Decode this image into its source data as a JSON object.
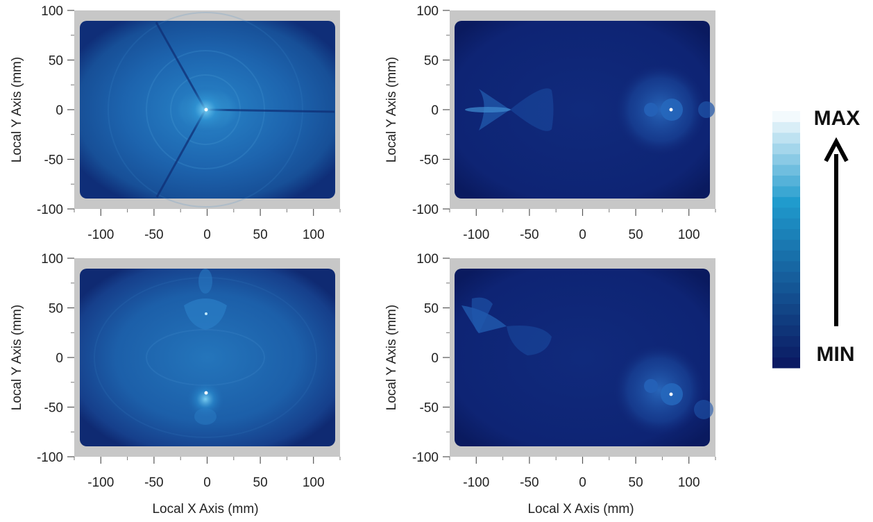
{
  "chart_data": [
    {
      "type": "heatmap",
      "panel": "top-left",
      "xlabel": "",
      "ylabel": "Local Y Axis (mm)",
      "xlim": [
        -125,
        125
      ],
      "ylim": [
        -100,
        100
      ],
      "x_ticks": [
        -100,
        -50,
        0,
        50,
        100
      ],
      "y_ticks": [
        100,
        50,
        0,
        -50,
        -100
      ],
      "x_tick_labels": [
        "-100",
        "-50",
        "0",
        "50",
        "100"
      ],
      "y_tick_labels": [
        "100",
        "50",
        "0",
        "-50",
        "-100"
      ],
      "hotspots": [
        {
          "x": 0,
          "y": 0,
          "intensity": 1.0
        }
      ],
      "features": [
        "central bright spot at origin",
        "concentric rings",
        "three radial dark streaks"
      ]
    },
    {
      "type": "heatmap",
      "panel": "top-right",
      "xlabel": "",
      "ylabel": "Local Y Axis (mm)",
      "xlim": [
        -125,
        125
      ],
      "ylim": [
        -100,
        100
      ],
      "x_ticks": [
        -100,
        -50,
        0,
        50,
        100
      ],
      "y_ticks": [
        100,
        50,
        0,
        -50,
        -100
      ],
      "x_tick_labels": [
        "-100",
        "-50",
        "0",
        "50",
        "100"
      ],
      "y_tick_labels": [
        "100",
        "50",
        "0",
        "-50",
        "-100"
      ],
      "hotspots": [
        {
          "x": 83,
          "y": 0,
          "intensity": 1.0
        }
      ],
      "features": [
        "bright spot near x=83",
        "faint bow-tie shape near x=-100 to -30"
      ]
    },
    {
      "type": "heatmap",
      "panel": "bottom-left",
      "xlabel": "Local X Axis (mm)",
      "ylabel": "Local Y Axis (mm)",
      "xlim": [
        -125,
        125
      ],
      "ylim": [
        -100,
        100
      ],
      "x_ticks": [
        -100,
        -50,
        0,
        50,
        100
      ],
      "y_ticks": [
        100,
        50,
        0,
        -50,
        -100
      ],
      "x_tick_labels": [
        "-100",
        "-50",
        "0",
        "50",
        "100"
      ],
      "y_tick_labels": [
        "100",
        "50",
        "0",
        "-50",
        "-100"
      ],
      "hotspots": [
        {
          "x": 0,
          "y": 42,
          "intensity": 0.7
        },
        {
          "x": 0,
          "y": -36,
          "intensity": 1.0
        }
      ],
      "features": [
        "two bright spots aligned vertically at x=0"
      ]
    },
    {
      "type": "heatmap",
      "panel": "bottom-right",
      "xlabel": "Local X Axis (mm)",
      "ylabel": "Local Y Axis (mm)",
      "xlim": [
        -125,
        125
      ],
      "ylim": [
        -100,
        100
      ],
      "x_ticks": [
        -100,
        -50,
        0,
        50,
        100
      ],
      "y_ticks": [
        100,
        50,
        0,
        -50,
        -100
      ],
      "x_tick_labels": [
        "-100",
        "-50",
        "0",
        "50",
        "100"
      ],
      "y_tick_labels": [
        "100",
        "50",
        "0",
        "-50",
        "-100"
      ],
      "hotspots": [
        {
          "x": 83,
          "y": -37,
          "intensity": 1.0
        }
      ],
      "features": [
        "bright spot near (83,-37)",
        "faint bow-tie shape upper left"
      ]
    }
  ],
  "colorbar": {
    "max_label": "MAX",
    "min_label": "MIN",
    "min_color": "#0b1a63",
    "max_color": "#f3fafd",
    "steps": 24
  },
  "colors": {
    "frame": "#c7c7c7",
    "bright_field": "#1d63ad",
    "dark_field": "#0e2474",
    "spot": "#ffffff"
  }
}
